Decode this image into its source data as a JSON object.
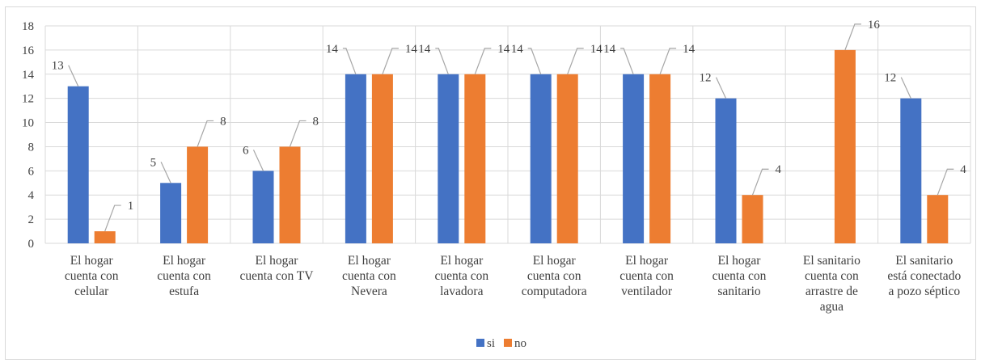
{
  "chart_data": {
    "type": "bar",
    "title": "",
    "xlabel": "",
    "ylabel": "",
    "ylim": [
      0,
      18
    ],
    "yticks": [
      0,
      2,
      4,
      6,
      8,
      10,
      12,
      14,
      16,
      18
    ],
    "grid": true,
    "legend_position": "bottom",
    "categories": [
      [
        "El hogar",
        "cuenta con",
        "celular"
      ],
      [
        "El hogar",
        "cuenta con",
        "estufa"
      ],
      [
        "El hogar",
        "cuenta con TV"
      ],
      [
        "El hogar",
        "cuenta con",
        "Nevera"
      ],
      [
        "El hogar",
        "cuenta con",
        "lavadora"
      ],
      [
        "El hogar",
        "cuenta con",
        "computadora"
      ],
      [
        "El hogar",
        "cuenta con",
        "ventilador"
      ],
      [
        "El hogar",
        "cuenta con",
        "sanitario"
      ],
      [
        "El sanitario",
        "cuenta con",
        "arrastre de",
        "agua"
      ],
      [
        "El sanitario",
        "está conectado",
        "a pozo séptico"
      ]
    ],
    "series": [
      {
        "name": "si",
        "color": "#4472c4",
        "values": [
          13,
          5,
          6,
          14,
          14,
          14,
          14,
          12,
          null,
          12
        ]
      },
      {
        "name": "no",
        "color": "#ed7d31",
        "values": [
          1,
          8,
          8,
          14,
          14,
          14,
          14,
          4,
          16,
          4
        ]
      }
    ]
  }
}
